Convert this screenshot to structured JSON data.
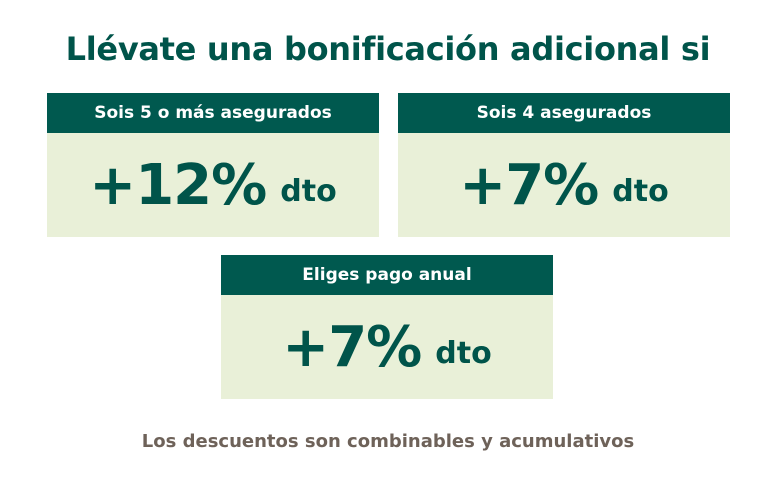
{
  "title": "Llévate una bonificación adicional si",
  "cards": [
    {
      "label": "Sois 5 o más asegurados",
      "value": "+12%",
      "unit": "dto"
    },
    {
      "label": "Sois 4 asegurados",
      "value": "+7%",
      "unit": "dto"
    },
    {
      "label": "Eliges pago anual",
      "value": "+7%",
      "unit": "dto"
    }
  ],
  "footer": "Los descuentos son combinables y acumulativos",
  "colors": {
    "header_bg": "#00594f",
    "body_bg": "#e9f0d8",
    "text_green": "#00544a",
    "footer_text": "#6e6259"
  }
}
